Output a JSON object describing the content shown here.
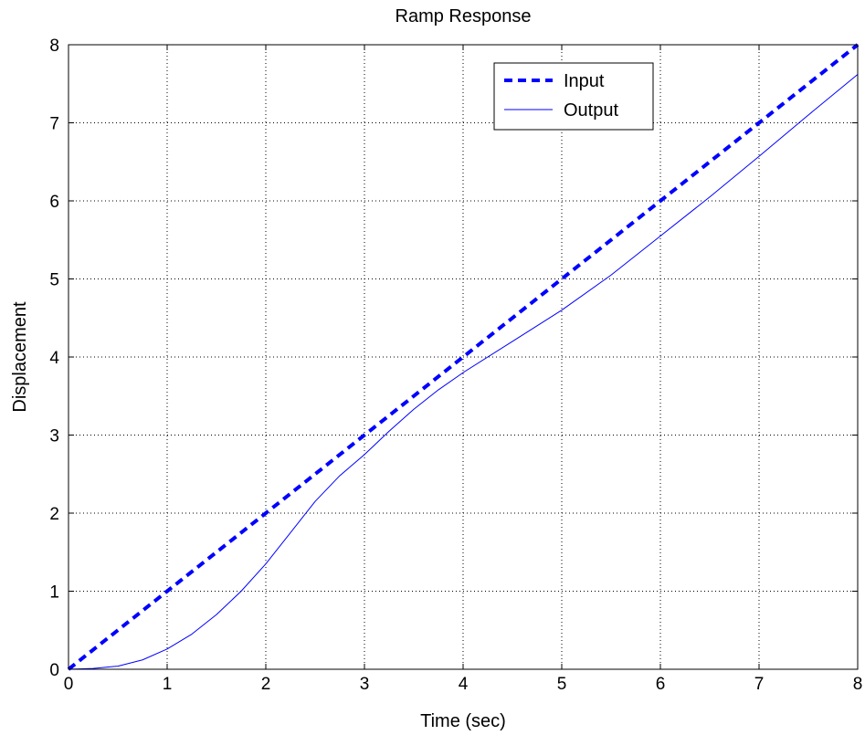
{
  "chart_data": {
    "type": "line",
    "title": "Ramp Response",
    "xlabel": "Time (sec)",
    "ylabel": "Displacement",
    "xlim": [
      0,
      8
    ],
    "ylim": [
      0,
      8
    ],
    "xticks": [
      "0",
      "1",
      "2",
      "3",
      "4",
      "5",
      "6",
      "7",
      "8"
    ],
    "yticks": [
      "0",
      "1",
      "2",
      "3",
      "4",
      "5",
      "6",
      "7",
      "8"
    ],
    "grid": true,
    "legend_position": "top-right",
    "series": [
      {
        "name": "Input",
        "style": "dashed-thick",
        "color": "#0000ff",
        "x": [
          0,
          1,
          2,
          3,
          4,
          5,
          6,
          7,
          8
        ],
        "y": [
          0,
          1,
          2,
          3,
          4,
          5,
          6,
          7,
          8
        ]
      },
      {
        "name": "Output",
        "style": "solid-thin",
        "color": "#0000ff",
        "x": [
          0,
          0.25,
          0.5,
          0.75,
          1.0,
          1.25,
          1.5,
          1.75,
          2.0,
          2.25,
          2.5,
          2.75,
          3.0,
          3.25,
          3.5,
          3.75,
          4.0,
          4.5,
          5.0,
          5.5,
          6.0,
          6.5,
          7.0,
          7.5,
          8.0
        ],
        "y": [
          0,
          0.01,
          0.04,
          0.12,
          0.26,
          0.45,
          0.7,
          1.0,
          1.35,
          1.75,
          2.15,
          2.48,
          2.75,
          3.05,
          3.33,
          3.58,
          3.8,
          4.2,
          4.6,
          5.05,
          5.55,
          6.05,
          6.57,
          7.1,
          7.62
        ]
      }
    ]
  }
}
